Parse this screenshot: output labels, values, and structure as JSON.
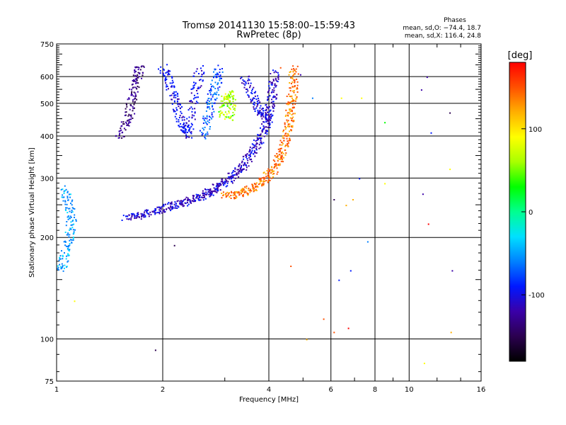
{
  "chart_data": {
    "type": "scatter",
    "title": "Tromsø 20141130 15:58:00–15:59:43",
    "subtitle": "RwPretec (8p)",
    "xlabel": "Frequency [MHz]",
    "ylabel": "Stationary phase Virtual Height [km]",
    "x_scale": "log",
    "y_scale": "log",
    "xlim": [
      1,
      16
    ],
    "ylim": [
      75,
      750
    ],
    "x_ticks": [
      1,
      2,
      4,
      6,
      8,
      10,
      16
    ],
    "y_ticks": [
      75,
      100,
      200,
      300,
      400,
      500,
      600,
      750
    ],
    "grid": true,
    "stats": {
      "heading": "Phases",
      "line_o": "mean, sd,O: −74.4, 18.7",
      "line_x": "mean, sd,X: 116.4, 24.8"
    },
    "colorbar": {
      "label": "[deg]",
      "min": -180,
      "max": 180,
      "ticks": [
        100,
        0,
        -100
      ],
      "palette": [
        "#000000",
        "#2b004f",
        "#3a00a8",
        "#0018ff",
        "#0080ff",
        "#00e0ff",
        "#00ff90",
        "#00ff00",
        "#a8ff00",
        "#ffff00",
        "#ffb000",
        "#ff5000",
        "#ff0000"
      ]
    },
    "traces": [
      {
        "name": "",
        "phase": -110,
        "points": [
          [
            1.55,
            230
          ],
          [
            1.65,
            232
          ],
          [
            1.75,
            235
          ],
          [
            1.85,
            238
          ],
          [
            1.95,
            242
          ],
          [
            2.05,
            246
          ],
          [
            2.15,
            250
          ],
          [
            2.25,
            254
          ],
          [
            2.35,
            258
          ],
          [
            2.45,
            262
          ],
          [
            2.55,
            266
          ],
          [
            2.65,
            270
          ],
          [
            2.75,
            275
          ],
          [
            2.85,
            282
          ],
          [
            2.95,
            290
          ],
          [
            3.05,
            298
          ],
          [
            3.15,
            306
          ],
          [
            3.25,
            316
          ],
          [
            3.35,
            326
          ],
          [
            3.45,
            340
          ],
          [
            3.55,
            356
          ],
          [
            3.65,
            372
          ],
          [
            3.75,
            392
          ],
          [
            3.85,
            415
          ],
          [
            3.92,
            440
          ],
          [
            3.98,
            470
          ],
          [
            4.03,
            500
          ],
          [
            4.07,
            540
          ],
          [
            4.1,
            580
          ],
          [
            4.13,
            620
          ]
        ]
      },
      {
        "name": "",
        "phase": 140,
        "points": [
          [
            3.0,
            270
          ],
          [
            3.15,
            268
          ],
          [
            3.3,
            272
          ],
          [
            3.45,
            276
          ],
          [
            3.6,
            282
          ],
          [
            3.75,
            290
          ],
          [
            3.9,
            300
          ],
          [
            4.05,
            312
          ],
          [
            4.15,
            326
          ],
          [
            4.25,
            342
          ],
          [
            4.33,
            360
          ],
          [
            4.4,
            380
          ],
          [
            4.46,
            405
          ],
          [
            4.52,
            430
          ],
          [
            4.56,
            460
          ],
          [
            4.6,
            490
          ],
          [
            4.63,
            520
          ],
          [
            4.66,
            560
          ],
          [
            4.68,
            600
          ],
          [
            4.7,
            640
          ]
        ]
      },
      {
        "name": "",
        "phase": -130,
        "points": [
          [
            1.5,
            400
          ],
          [
            1.55,
            430
          ],
          [
            1.6,
            460
          ],
          [
            1.62,
            500
          ],
          [
            1.65,
            540
          ],
          [
            1.68,
            580
          ],
          [
            1.7,
            620
          ],
          [
            1.72,
            650
          ]
        ]
      },
      {
        "name": "",
        "phase": -95,
        "points": [
          [
            2.0,
            640
          ],
          [
            2.05,
            600
          ],
          [
            2.1,
            560
          ],
          [
            2.15,
            520
          ],
          [
            2.2,
            480
          ],
          [
            2.25,
            440
          ],
          [
            2.3,
            420
          ],
          [
            2.35,
            400
          ],
          [
            2.4,
            460
          ],
          [
            2.45,
            520
          ],
          [
            2.5,
            580
          ],
          [
            2.55,
            640
          ]
        ]
      },
      {
        "name": "",
        "phase": -70,
        "points": [
          [
            2.6,
            400
          ],
          [
            2.65,
            440
          ],
          [
            2.7,
            480
          ],
          [
            2.75,
            520
          ],
          [
            2.8,
            560
          ],
          [
            2.85,
            600
          ],
          [
            2.9,
            640
          ]
        ]
      },
      {
        "name": "",
        "phase": -55,
        "points": [
          [
            1.05,
            280
          ],
          [
            1.07,
            260
          ],
          [
            1.09,
            240
          ],
          [
            1.1,
            220
          ],
          [
            1.08,
            200
          ],
          [
            1.06,
            185
          ],
          [
            1.04,
            170
          ],
          [
            1.03,
            160
          ]
        ]
      },
      {
        "name": "",
        "phase": 60,
        "points": [
          [
            2.95,
            460
          ],
          [
            3.0,
            500
          ],
          [
            3.05,
            540
          ],
          [
            3.1,
            520
          ],
          [
            3.15,
            480
          ],
          [
            3.05,
            440
          ]
        ]
      },
      {
        "name": "",
        "phase": -100,
        "points": [
          [
            3.4,
            600
          ],
          [
            3.5,
            560
          ],
          [
            3.6,
            520
          ],
          [
            3.7,
            490
          ],
          [
            3.8,
            470
          ],
          [
            3.9,
            460
          ],
          [
            4.0,
            450
          ]
        ]
      }
    ],
    "scatter_extra": [
      {
        "x": 10.8,
        "y": 550,
        "phase": -120
      },
      {
        "x": 11.2,
        "y": 600,
        "phase": -110
      },
      {
        "x": 11.5,
        "y": 410,
        "phase": -100
      },
      {
        "x": 13.0,
        "y": 470,
        "phase": -140
      },
      {
        "x": 10.9,
        "y": 270,
        "phase": -130
      },
      {
        "x": 11.3,
        "y": 220,
        "phase": 170
      },
      {
        "x": 13.2,
        "y": 160,
        "phase": -120
      },
      {
        "x": 13.1,
        "y": 105,
        "phase": 120
      },
      {
        "x": 11.0,
        "y": 85,
        "phase": 100
      },
      {
        "x": 13.0,
        "y": 320,
        "phase": 80
      },
      {
        "x": 6.1,
        "y": 260,
        "phase": -140
      },
      {
        "x": 6.6,
        "y": 250,
        "phase": 110
      },
      {
        "x": 6.9,
        "y": 260,
        "phase": 130
      },
      {
        "x": 7.2,
        "y": 300,
        "phase": -80
      },
      {
        "x": 6.3,
        "y": 150,
        "phase": -100
      },
      {
        "x": 6.8,
        "y": 160,
        "phase": -90
      },
      {
        "x": 6.1,
        "y": 105,
        "phase": 160
      },
      {
        "x": 6.7,
        "y": 108,
        "phase": 170
      },
      {
        "x": 5.7,
        "y": 115,
        "phase": 140
      },
      {
        "x": 5.1,
        "y": 100,
        "phase": 110
      },
      {
        "x": 4.6,
        "y": 165,
        "phase": 150
      },
      {
        "x": 1.9,
        "y": 93,
        "phase": -150
      },
      {
        "x": 2.15,
        "y": 190,
        "phase": -140
      },
      {
        "x": 1.12,
        "y": 130,
        "phase": 90
      },
      {
        "x": 8.5,
        "y": 290,
        "phase": 80
      },
      {
        "x": 7.6,
        "y": 195,
        "phase": -60
      },
      {
        "x": 6.4,
        "y": 520,
        "phase": 90
      },
      {
        "x": 7.3,
        "y": 520,
        "phase": 80
      },
      {
        "x": 5.3,
        "y": 520,
        "phase": -70
      },
      {
        "x": 8.5,
        "y": 440,
        "phase": 20
      },
      {
        "x": 4.9,
        "y": 610,
        "phase": -110
      },
      {
        "x": 4.3,
        "y": 640,
        "phase": 160
      }
    ]
  }
}
